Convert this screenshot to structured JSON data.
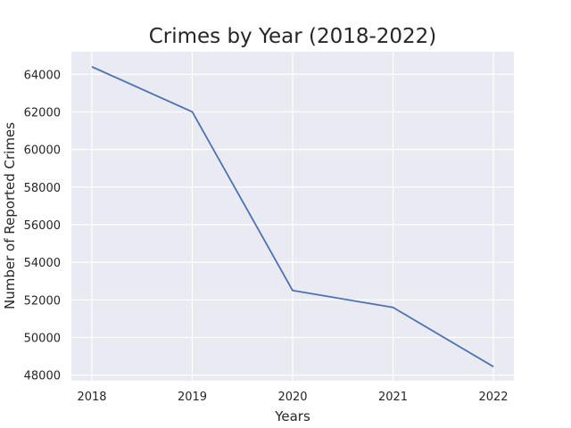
{
  "chart_data": {
    "type": "line",
    "title": "Crimes by Year (2018-2022)",
    "xlabel": "Years",
    "ylabel": "Number of Reported Crimes",
    "x": [
      "2018",
      "2019",
      "2020",
      "2021",
      "2022"
    ],
    "series": [
      {
        "values": [
          64400,
          62000,
          52500,
          51600,
          48450
        ]
      }
    ],
    "yticks": [
      48000,
      50000,
      52000,
      54000,
      56000,
      58000,
      60000,
      62000,
      64000
    ],
    "ylim": [
      47700,
      65200
    ],
    "grid": true,
    "legend": "none",
    "colors": {
      "background": "#eaeaf2",
      "grid": "#ffffff",
      "line": "#4c72b0",
      "text": "#262626"
    }
  }
}
